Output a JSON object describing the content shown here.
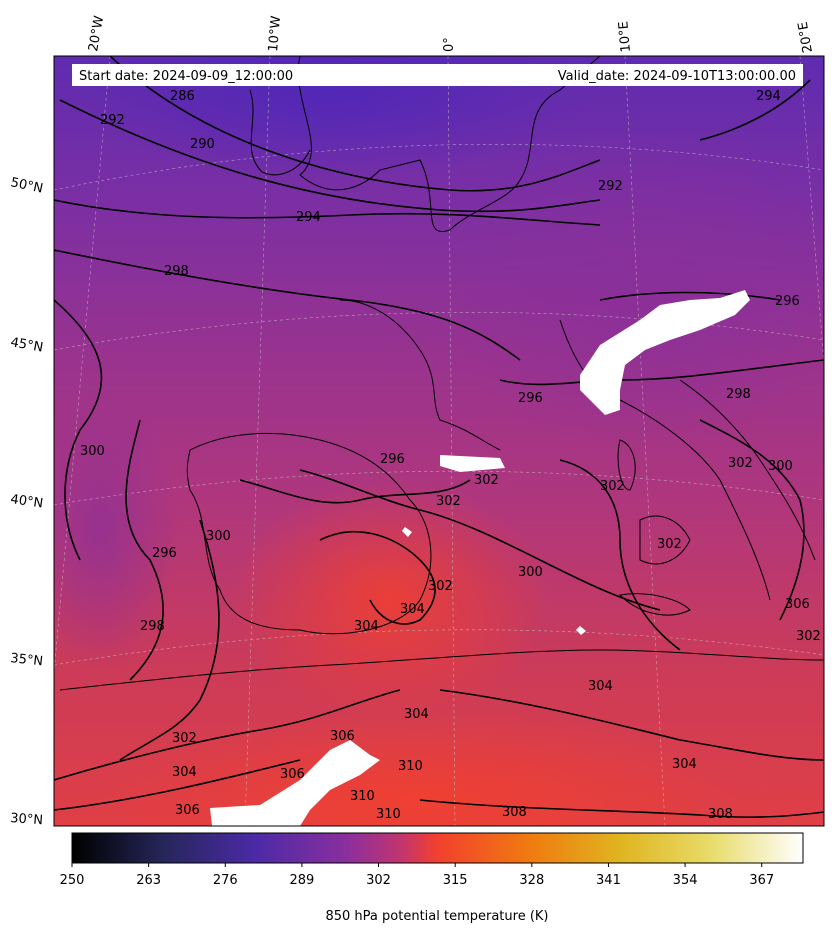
{
  "header": {
    "start_date": "Start date: 2024-09-09_12:00:00",
    "valid_date": "Valid_date: 2024-09-10T13:00:00.00"
  },
  "map": {
    "projection": "conic",
    "lon_labels": [
      "20°W",
      "10°W",
      "0°",
      "10°E",
      "20°E"
    ],
    "lat_labels": [
      "50°N",
      "45°N",
      "40°N",
      "35°N",
      "30°N"
    ],
    "gridlines": true
  },
  "contours": {
    "labels": [
      "286",
      "292",
      "290",
      "294",
      "292",
      "294",
      "298",
      "296",
      "296",
      "300",
      "296",
      "302",
      "302",
      "298",
      "302",
      "300",
      "296",
      "300",
      "298",
      "304",
      "302",
      "304",
      "302",
      "302",
      "306",
      "302",
      "300",
      "304",
      "304",
      "306",
      "302",
      "304",
      "306",
      "310",
      "310",
      "310",
      "304",
      "308",
      "308",
      "306"
    ]
  },
  "colorbar": {
    "label": "850 hPa potential temperature (K)",
    "colormap": "CMRmap",
    "range": [
      250,
      374
    ],
    "ticks": [
      "250",
      "263",
      "276",
      "289",
      "302",
      "315",
      "328",
      "341",
      "354",
      "367"
    ]
  }
}
